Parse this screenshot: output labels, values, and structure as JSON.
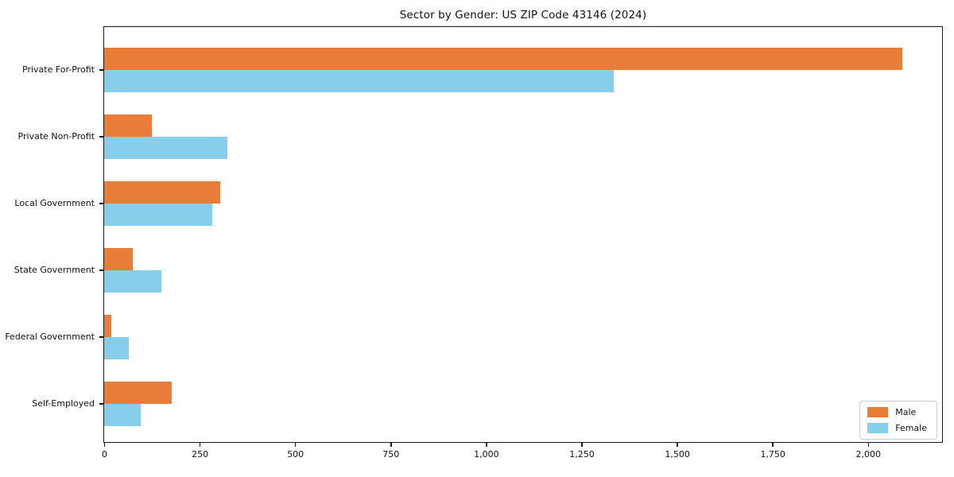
{
  "chart_data": {
    "type": "bar",
    "orientation": "horizontal",
    "title": "Sector by Gender: US ZIP Code 43146 (2024)",
    "xlabel": "",
    "ylabel": "",
    "categories": [
      "Private For-Profit",
      "Private Non-Profit",
      "Local Government",
      "State Government",
      "Federal Government",
      "Self-Employed"
    ],
    "series": [
      {
        "name": "Male",
        "color": "#e87d3a",
        "values": [
          2090,
          125,
          303,
          75,
          19,
          177
        ]
      },
      {
        "name": "Female",
        "color": "#87ceeb",
        "values": [
          1334,
          323,
          283,
          149,
          64,
          96
        ]
      }
    ],
    "xlim": [
      0,
      2194
    ],
    "xticks": {
      "values": [
        0,
        250,
        500,
        750,
        1000,
        1250,
        1500,
        1750,
        2000
      ],
      "labels": [
        "0",
        "250",
        "500",
        "750",
        "1,000",
        "1,250",
        "1,500",
        "1,750",
        "2,000"
      ]
    },
    "grid": false,
    "legend": {
      "position": "lower right",
      "entries": [
        "Male",
        "Female"
      ]
    }
  },
  "colors": {
    "male": "#e87d3a",
    "female": "#87ceeb",
    "spine": "#1a1a1a",
    "legend_border": "#cccccc",
    "text": "#111111"
  }
}
